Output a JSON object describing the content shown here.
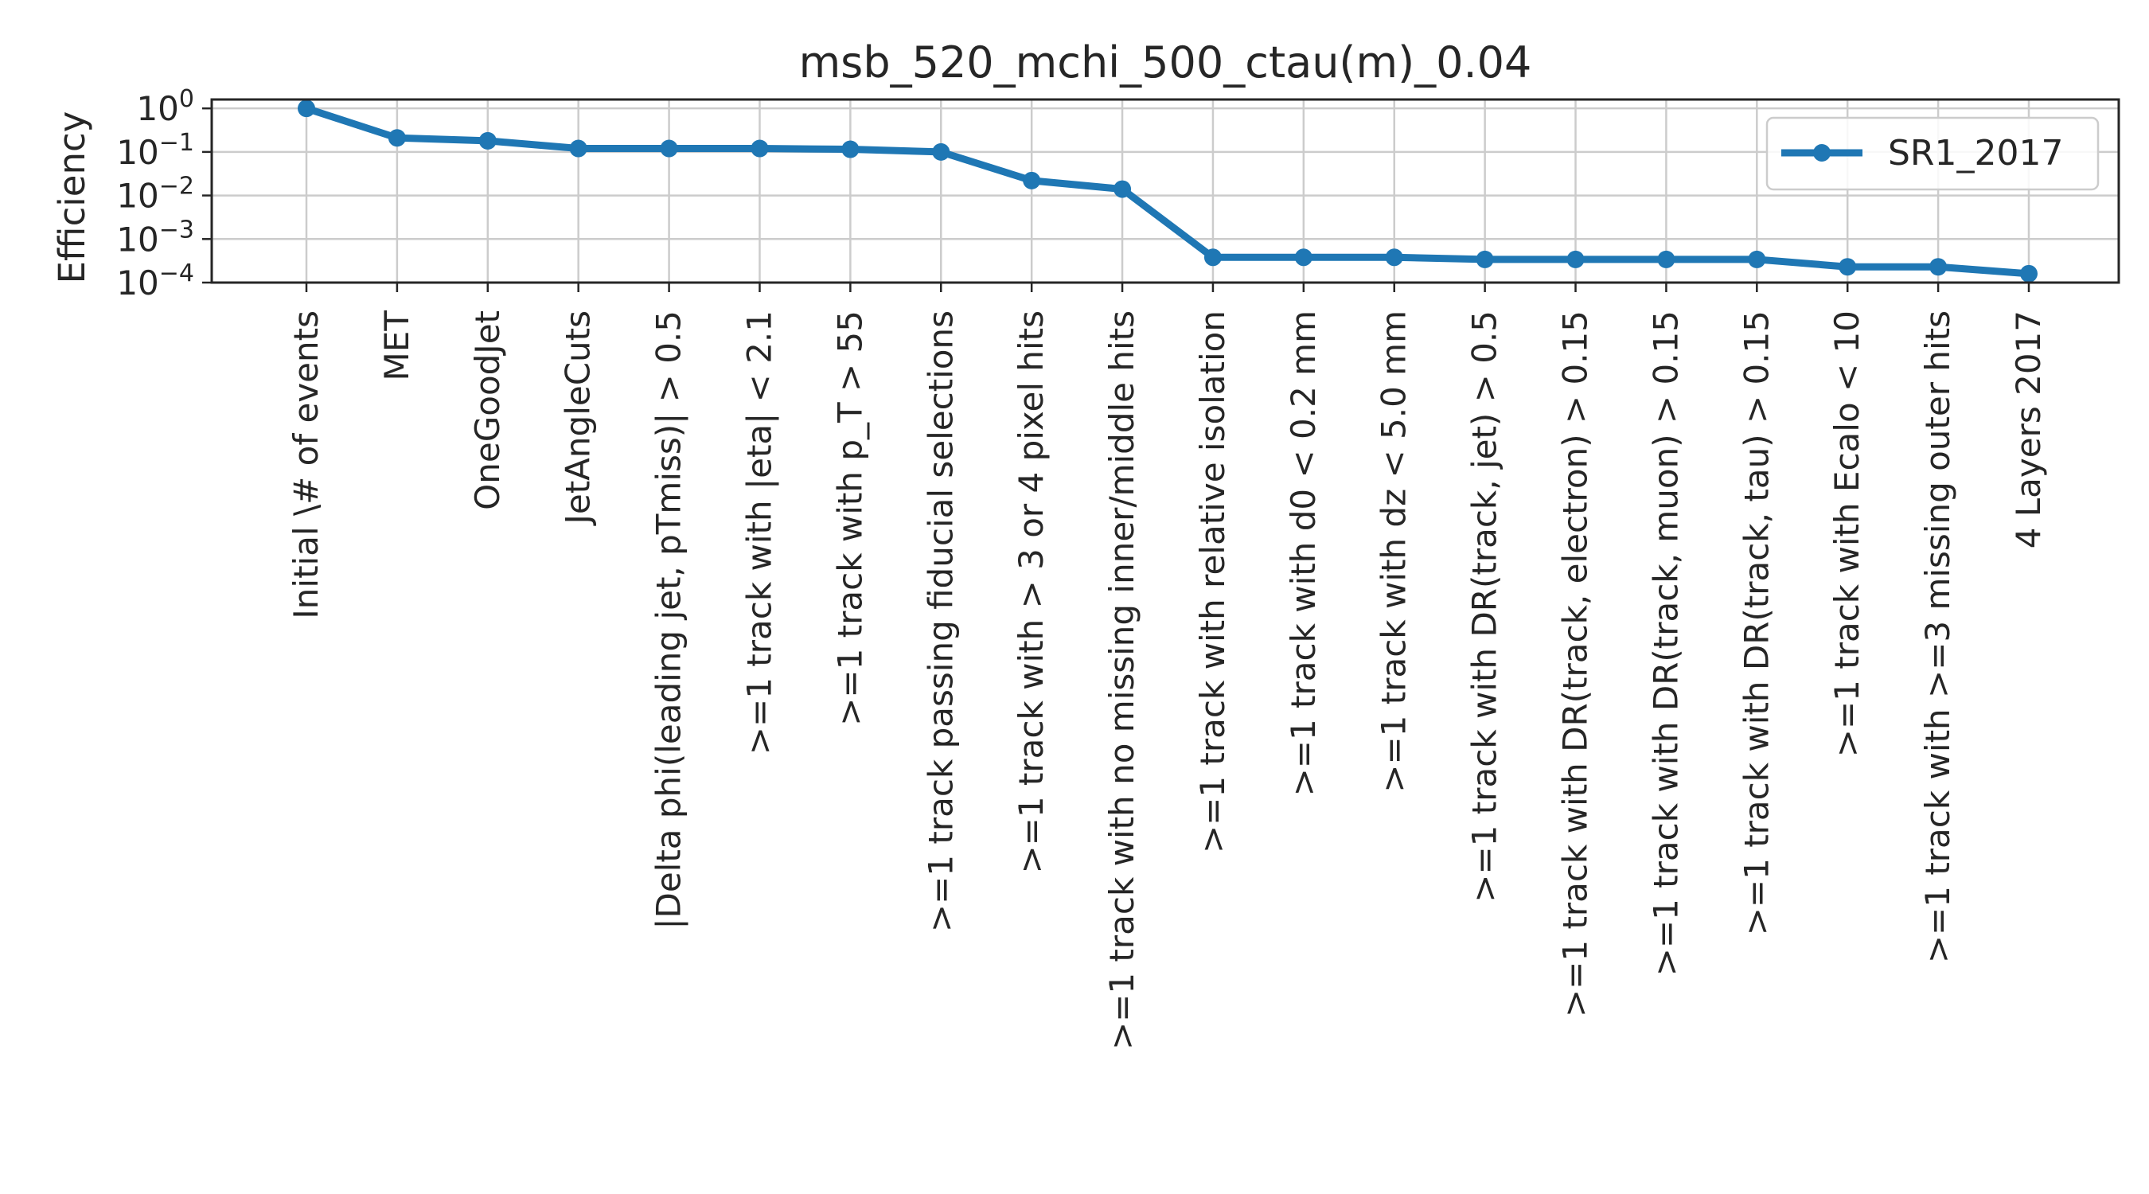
{
  "chart_data": {
    "type": "line",
    "title": "msb_520_mchi_500_ctau(m)_0.04",
    "xlabel": "",
    "ylabel": "Efficiency",
    "yscale": "log",
    "ylim": [
      0.0001,
      1.6
    ],
    "grid": true,
    "legend_position": "top-right",
    "yticks": [
      {
        "value": 1,
        "base": "10",
        "exp": "0"
      },
      {
        "value": 0.1,
        "base": "10",
        "exp": "−1"
      },
      {
        "value": 0.01,
        "base": "10",
        "exp": "−2"
      },
      {
        "value": 0.001,
        "base": "10",
        "exp": "−3"
      },
      {
        "value": 0.0001,
        "base": "10",
        "exp": "−4"
      }
    ],
    "categories": [
      "Initial \\# of events",
      "MET",
      "OneGoodJet",
      "JetAngleCuts",
      "|Delta phi(leading jet, pTmiss)| > 0.5",
      ">=1 track with |eta| < 2.1",
      ">=1 track with p_T > 55",
      ">=1 track passing fiducial selections",
      ">=1 track with > 3 or 4 pixel hits",
      ">=1 track with no missing inner/middle hits",
      ">=1 track with relative isolation",
      ">=1 track with d0 < 0.2 mm",
      ">=1 track with dz < 5.0 mm",
      ">=1 track with DR(track, jet) > 0.5",
      ">=1 track with DR(track, electron) > 0.15",
      ">=1 track with DR(track, muon) > 0.15",
      ">=1 track with DR(track, tau) > 0.15",
      ">=1 track with Ecalo < 10",
      ">=1 track with >=3 missing outer hits",
      "4 Layers 2017"
    ],
    "series": [
      {
        "name": "SR1_2017",
        "color": "#1f77b4",
        "values": [
          1.0,
          0.21,
          0.18,
          0.12,
          0.12,
          0.12,
          0.115,
          0.1,
          0.022,
          0.014,
          0.00038,
          0.00038,
          0.00038,
          0.00034,
          0.00034,
          0.00034,
          0.00034,
          0.00023,
          0.00023,
          0.00016
        ]
      }
    ]
  }
}
